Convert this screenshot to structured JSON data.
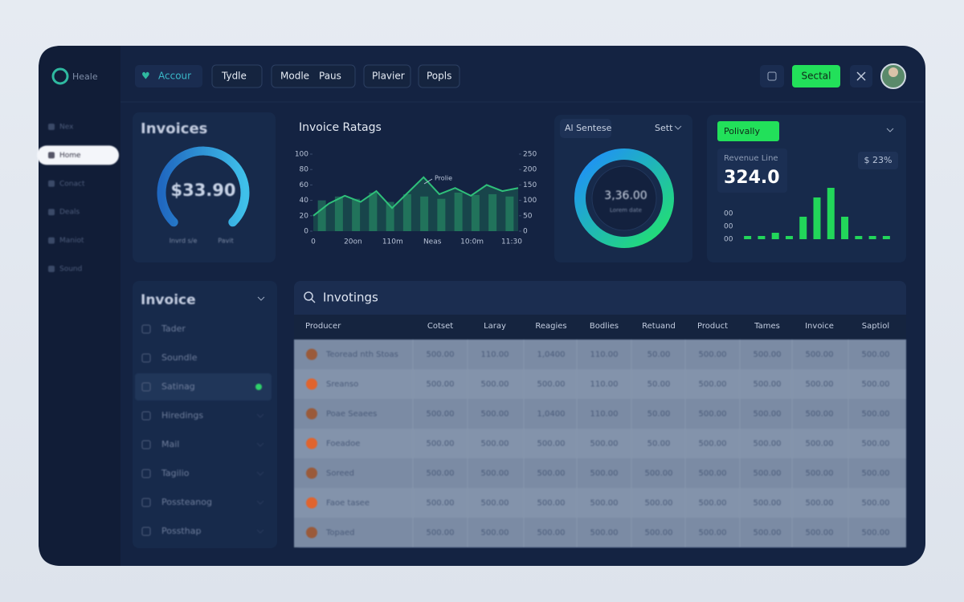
{
  "app": {
    "logo": "Heale"
  },
  "nav": {
    "items": [
      "Accour",
      "Tydle",
      "Modle",
      "Paus",
      "Plavier",
      "Popls"
    ],
    "action": "Sectal"
  },
  "sidebar": [
    "Nex",
    "Home",
    "Conact",
    "Deals",
    "Maniot",
    "Sound"
  ],
  "invoices_card": {
    "title": "Invoices",
    "amount": "$33.90",
    "labels": [
      "Invrd s/e",
      "Pavit"
    ]
  },
  "rating_chart": {
    "type": "bar",
    "title": "Invoice Ratags",
    "annotation": "Prolie",
    "x_labels": [
      "0",
      "20on",
      "110m",
      "Neas",
      "10:0m",
      "11:30"
    ],
    "bars": {
      "values": [
        40,
        45,
        42,
        50,
        38,
        48,
        45,
        42,
        50,
        47,
        48,
        45
      ]
    },
    "line": {
      "axis": "y2",
      "values": [
        50,
        90,
        115,
        95,
        130,
        75,
        125,
        175,
        120,
        140,
        115,
        150,
        130,
        140
      ]
    },
    "ylim": [
      0,
      100
    ],
    "yticks": [
      0,
      20,
      40,
      60,
      80,
      100
    ],
    "y2lim": [
      0,
      250
    ],
    "y2ticks": [
      0,
      50,
      100,
      150,
      200,
      250
    ]
  },
  "sentiment_card": {
    "tab": "Al Sentese",
    "filter": "Sett",
    "amount": "3,36.00",
    "caption": "Lorem date"
  },
  "revenue_card": {
    "button": "Polivally",
    "label": "Revenue Line",
    "value": "324.0",
    "change": "$ 23%",
    "chart": {
      "type": "bar",
      "values": [
        5,
        5,
        10,
        5,
        35,
        65,
        80,
        35,
        5,
        5,
        5
      ],
      "color": "#22d65a",
      "ylim": [
        0,
        100
      ],
      "yticks": [
        {
          "value": 0,
          "label": "00"
        },
        {
          "value": 20,
          "label": "00"
        },
        {
          "value": 40,
          "label": "00"
        }
      ]
    }
  },
  "invoice_list": {
    "title": "Invoice",
    "items": [
      "Tader",
      "Soundle",
      "Satinag",
      "Hiredings",
      "Mail",
      "Tagilio",
      "Possteanog",
      "Possthap"
    ]
  },
  "table": {
    "title": "Invotings",
    "columns": [
      "Producer",
      "Cotset",
      "Laray",
      "Reagies",
      "Bodlies",
      "Retuand",
      "Product",
      "Tames",
      "Invoice",
      "Saptiol"
    ],
    "rows": [
      [
        "Teoread nth Stoas",
        "500.00",
        "110.00",
        "1,0400",
        "110.00",
        "50.00",
        "500.00",
        "500.00",
        "500.00",
        "500.00"
      ],
      [
        "Sreanso",
        "500.00",
        "500.00",
        "500.00",
        "110.00",
        "50.00",
        "500.00",
        "500.00",
        "500.00",
        "500.00"
      ],
      [
        "Poae Seaees",
        "500.00",
        "500.00",
        "1,0400",
        "110.00",
        "50.00",
        "500.00",
        "500.00",
        "500.00",
        "500.00"
      ],
      [
        "Foeadoe",
        "500.00",
        "500.00",
        "500.00",
        "500.00",
        "50.00",
        "500.00",
        "500.00",
        "500.00",
        "500.00"
      ],
      [
        "Soreed",
        "500.00",
        "500.00",
        "500.00",
        "500.00",
        "500.00",
        "500.00",
        "500.00",
        "500.00",
        "500.00"
      ],
      [
        "Faoe tasee",
        "500.00",
        "500.00",
        "500.00",
        "500.00",
        "500.00",
        "500.00",
        "500.00",
        "500.00",
        "500.00"
      ],
      [
        "Topaed",
        "500.00",
        "500.00",
        "500.00",
        "500.00",
        "500.00",
        "500.00",
        "500.00",
        "500.00",
        "500.00"
      ]
    ]
  }
}
